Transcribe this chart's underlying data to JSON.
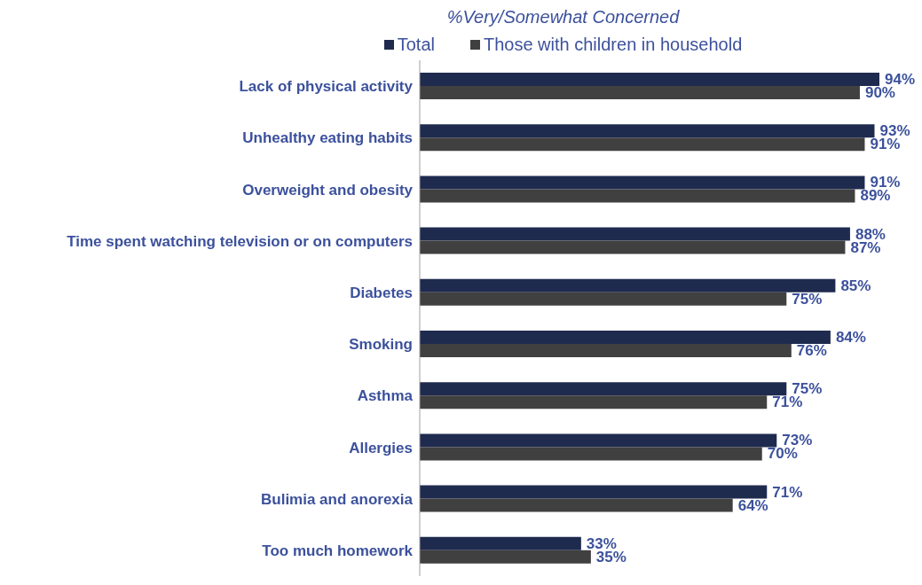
{
  "chart_data": {
    "type": "bar",
    "orientation": "horizontal",
    "subtitle": "%Very/Somewhat Concerned",
    "legend": "top",
    "categories": [
      "Lack of physical activity",
      "Unhealthy eating habits",
      "Overweight and obesity",
      "Time spent watching television or on computers",
      "Diabetes",
      "Smoking",
      "Asthma",
      "Allergies",
      "Bulimia and anorexia",
      "Too much homework"
    ],
    "series": [
      {
        "name": "Total",
        "color": "#1f2a4f",
        "values": [
          94,
          93,
          91,
          88,
          85,
          84,
          75,
          73,
          71,
          33
        ],
        "value_labels": [
          "94%",
          "93%",
          "91%",
          "88%",
          "85%",
          "84%",
          "75%",
          "73%",
          "71%",
          "33%"
        ]
      },
      {
        "name": "Those with children in household",
        "color": "#404040",
        "values": [
          90,
          91,
          89,
          87,
          75,
          76,
          71,
          70,
          64,
          35
        ],
        "value_labels": [
          "90%",
          "91%",
          "89%",
          "87%",
          "75%",
          "76%",
          "71%",
          "70%",
          "64%",
          "35%"
        ]
      }
    ]
  }
}
